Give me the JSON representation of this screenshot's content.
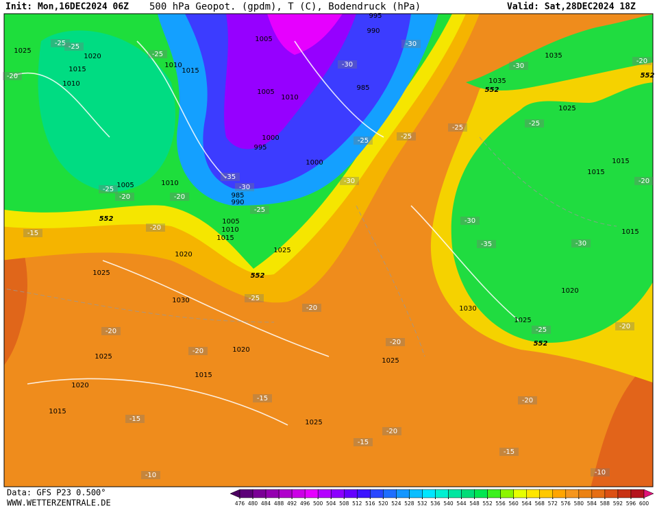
{
  "header": {
    "init": "Init: Mon,16DEC2024 06Z",
    "title": "500 hPa Geopot. (gpdm), T (C), Bodendruck (hPa)",
    "valid": "Valid: Sat,28DEC2024 18Z"
  },
  "footer": {
    "data": "Data: GFS P23 0.500°",
    "site": "WWW.WETTERZENTRALE.DE"
  },
  "map": {
    "isobar_labels": [
      995,
      990,
      1005,
      1025,
      1020,
      1015,
      1010,
      1015,
      1010,
      985,
      1005,
      1010,
      1035,
      1035,
      1025,
      1000,
      995,
      1000,
      1015,
      1015,
      1005,
      1010,
      985,
      990,
      1010,
      1005,
      1015,
      1015,
      1025,
      1020,
      1025,
      1020,
      1030,
      1030,
      1025,
      1020,
      1025,
      1025,
      1015,
      1020,
      1015,
      1025
    ],
    "temperature_labels": [
      -25,
      -25,
      -25,
      -20,
      -30,
      -30,
      -20,
      -30,
      -25,
      -25,
      -25,
      -25,
      -30,
      -25,
      -20,
      -20,
      -35,
      -30,
      -20,
      -15,
      -25,
      -30,
      -35,
      -30,
      -25,
      -20,
      -20,
      -20,
      -20,
      -25,
      -20,
      -15,
      -15,
      -20,
      -20,
      -15,
      -15,
      -10,
      -10,
      -20
    ],
    "height_labels": [
      552,
      552,
      552,
      552,
      552
    ]
  },
  "colorbar": {
    "ticks": [
      476,
      480,
      484,
      488,
      492,
      496,
      500,
      504,
      508,
      512,
      516,
      520,
      524,
      528,
      532,
      536,
      540,
      544,
      548,
      552,
      556,
      560,
      564,
      568,
      572,
      576,
      580,
      584,
      588,
      592,
      596,
      600
    ],
    "colors": [
      "#4b0060",
      "#5c0078",
      "#7a0096",
      "#9400b0",
      "#b000cc",
      "#cc00e6",
      "#e600ff",
      "#b400ff",
      "#8c00ff",
      "#6400ff",
      "#3c14ff",
      "#2846ff",
      "#1e6eff",
      "#1496ff",
      "#0abeff",
      "#00e6ff",
      "#00f0d2",
      "#00e6a0",
      "#00dc78",
      "#00e650",
      "#3cf01e",
      "#8cf500",
      "#e6ff00",
      "#ffe600",
      "#ffc800",
      "#ffa500",
      "#f5961e",
      "#eb8214",
      "#e66e14",
      "#dc5014",
      "#c83214",
      "#b4141e",
      "#e0147a"
    ]
  }
}
